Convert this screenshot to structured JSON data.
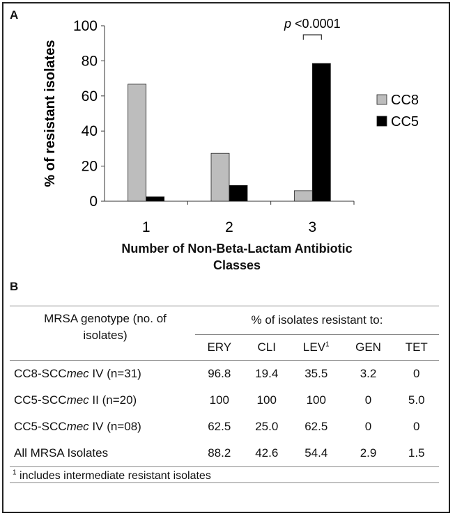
{
  "panels": {
    "a": "A",
    "b": "B"
  },
  "chart_data": {
    "type": "bar",
    "categories": [
      "1",
      "2",
      "3"
    ],
    "series": [
      {
        "name": "CC8",
        "values": [
          66.7,
          27.3,
          6.0
        ],
        "color": "#bdbdbd"
      },
      {
        "name": "CC5",
        "values": [
          2.5,
          9.0,
          78.5
        ],
        "color": "#000000"
      }
    ],
    "ylabel": "% of resistant isolates",
    "xlabel_lines": [
      "Number of Non-Beta-Lactam Antibiotic",
      "Classes"
    ],
    "ylim": [
      0,
      100
    ],
    "yticks": [
      "0",
      "20",
      "40",
      "60",
      "80",
      "100"
    ],
    "legend_position": "right",
    "annotation": {
      "p_symbol": "p",
      "p_text": "<0.0001",
      "category": "3"
    }
  },
  "table": {
    "genotype_header_line1": "MRSA genotype (no. of",
    "genotype_header_line2": "isolates)",
    "resistant_header": "% of isolates resistant to:",
    "columns": [
      {
        "label": "ERY",
        "sup": ""
      },
      {
        "label": "CLI",
        "sup": ""
      },
      {
        "label": "LEV",
        "sup": "1"
      },
      {
        "label": "GEN",
        "sup": ""
      },
      {
        "label": "TET",
        "sup": ""
      }
    ],
    "rows": [
      {
        "pre": "CC8-SCC",
        "italic": "mec",
        "post": " IV (n=31)",
        "values": [
          "96.8",
          "19.4",
          "35.5",
          "3.2",
          "0"
        ]
      },
      {
        "pre": "CC5-SCC",
        "italic": "mec",
        "post": " II (n=20)",
        "values": [
          "100",
          "100",
          "100",
          "0",
          "5.0"
        ]
      },
      {
        "pre": "CC5-SCC",
        "italic": "mec",
        "post": " IV (n=08)",
        "values": [
          "62.5",
          "25.0",
          "62.5",
          "0",
          "0"
        ]
      },
      {
        "pre": "All MRSA Isolates",
        "italic": "",
        "post": "",
        "values": [
          "88.2",
          "42.6",
          "54.4",
          "2.9",
          "1.5"
        ]
      }
    ],
    "footnote_mark": "1",
    "footnote": " includes intermediate resistant isolates"
  }
}
